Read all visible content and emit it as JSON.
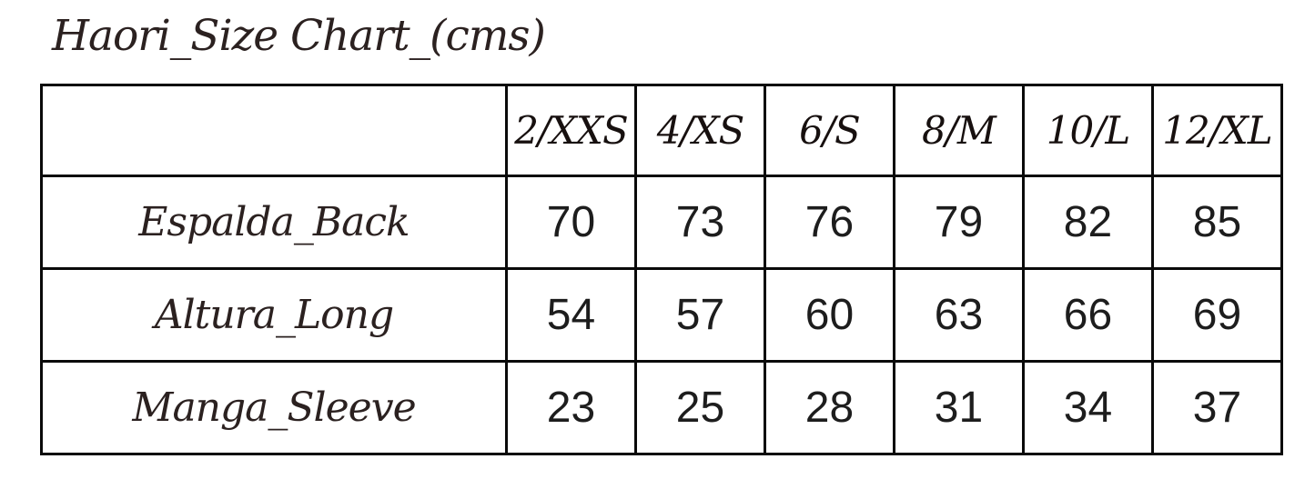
{
  "title": "Haori_Size Chart_(cms)",
  "colors": {
    "background": "#ffffff",
    "border": "#0a0a0a",
    "serif_text": "#2b2120",
    "number_text": "#1d1d1d"
  },
  "chart_data": {
    "type": "table",
    "title": "Haori_Size Chart_(cms)",
    "unit": "cms",
    "columns": [
      "",
      "2/XXS",
      "4/XS",
      "6/S",
      "8/M",
      "10/L",
      "12/XL"
    ],
    "rows": [
      {
        "label": "Espalda_Back",
        "values": [
          70,
          73,
          76,
          79,
          82,
          85
        ]
      },
      {
        "label": "Altura_Long",
        "values": [
          54,
          57,
          60,
          63,
          66,
          69
        ]
      },
      {
        "label": "Manga_Sleeve",
        "values": [
          23,
          25,
          28,
          31,
          34,
          37
        ]
      }
    ]
  }
}
